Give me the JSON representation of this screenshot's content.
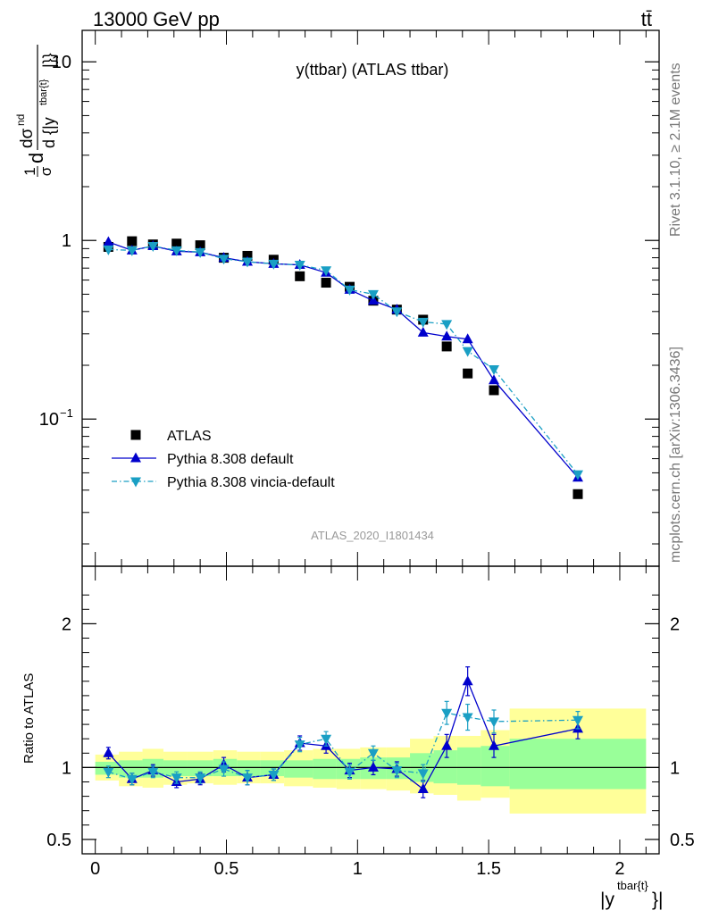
{
  "header": {
    "left": "13000 GeV pp",
    "right": "tt̄"
  },
  "side_text": {
    "rivet": "Rivet 3.1.10, ≥ 2.1M events",
    "mcplots": "mcplots.cern.ch [arXiv:1306.3436]"
  },
  "colors": {
    "atlas": "#000000",
    "pythia_default": "#0000cc",
    "pythia_vincia": "#1a9fc4",
    "band_inner": "#99ff99",
    "band_outer": "#ffff99"
  },
  "chart_data": [
    {
      "type": "scatter",
      "panel": "main",
      "title": "y(ttbar) (ATLAS ttbar)",
      "watermark": "ATLAS_2020_I1801434",
      "ylabel_parts": {
        "frac_num": "1",
        "frac_den": "σ",
        "d_prefix": "d",
        "num": "dσ",
        "num_sup": "nd",
        "den": "d {|y",
        "den_sub": "tbar{t}",
        "den_end": "|}}"
      },
      "yscale": "log",
      "ylim": [
        0.015,
        15
      ],
      "xlim": [
        -0.05,
        2.15
      ],
      "y_ticks": [
        {
          "value": 0.1,
          "base": "10",
          "exp": "−1"
        },
        {
          "value": 1,
          "base": "1",
          "exp": ""
        },
        {
          "value": 10,
          "base": "10",
          "exp": ""
        }
      ],
      "legend_position": "bottom-left",
      "series": [
        {
          "name": "ATLAS",
          "marker": "square",
          "x": [
            0.05,
            0.14,
            0.22,
            0.31,
            0.4,
            0.49,
            0.58,
            0.68,
            0.78,
            0.88,
            0.97,
            1.06,
            1.15,
            1.25,
            1.34,
            1.42,
            1.52,
            1.84
          ],
          "y": [
            0.92,
            0.99,
            0.95,
            0.96,
            0.94,
            0.8,
            0.82,
            0.78,
            0.63,
            0.58,
            0.55,
            0.46,
            0.41,
            0.36,
            0.255,
            0.18,
            0.145,
            0.038
          ]
        },
        {
          "name": "Pythia 8.308 default",
          "marker": "triangle-up",
          "x": [
            0.05,
            0.14,
            0.22,
            0.31,
            0.4,
            0.49,
            0.58,
            0.68,
            0.78,
            0.88,
            0.97,
            1.06,
            1.15,
            1.25,
            1.34,
            1.42,
            1.52,
            1.84
          ],
          "y": [
            0.98,
            0.88,
            0.93,
            0.87,
            0.86,
            0.8,
            0.76,
            0.74,
            0.73,
            0.66,
            0.53,
            0.46,
            0.41,
            0.305,
            0.29,
            0.28,
            0.165,
            0.047
          ]
        },
        {
          "name": "Pythia 8.308 vincia-default",
          "marker": "triangle-down",
          "x": [
            0.05,
            0.14,
            0.22,
            0.31,
            0.4,
            0.49,
            0.58,
            0.68,
            0.78,
            0.88,
            0.97,
            1.06,
            1.15,
            1.25,
            1.34,
            1.42,
            1.52,
            1.84
          ],
          "y": [
            0.89,
            0.88,
            0.93,
            0.88,
            0.86,
            0.79,
            0.76,
            0.74,
            0.73,
            0.68,
            0.53,
            0.5,
            0.4,
            0.35,
            0.34,
            0.24,
            0.19,
            0.049
          ]
        }
      ]
    },
    {
      "type": "line",
      "panel": "ratio",
      "ylabel": "Ratio to ATLAS",
      "xlabel_parts": {
        "pre": "|y",
        "sup": "tbar{t}",
        "post": "}|"
      },
      "ylim": [
        0.4,
        2.4
      ],
      "xlim": [
        -0.05,
        2.15
      ],
      "x_ticks": [
        {
          "value": 0,
          "label": "0"
        },
        {
          "value": 0.5,
          "label": "0.5"
        },
        {
          "value": 1,
          "label": "1"
        },
        {
          "value": 1.5,
          "label": "1.5"
        },
        {
          "value": 2,
          "label": "2"
        }
      ],
      "y_ticks": [
        {
          "value": 0.5,
          "label": "0.5"
        },
        {
          "value": 1,
          "label": "1"
        },
        {
          "value": 2,
          "label": "2"
        }
      ],
      "band_bins": [
        {
          "x0": 0.0,
          "x1": 0.09,
          "in_lo": 0.95,
          "in_hi": 1.04,
          "out_lo": 0.91,
          "out_hi": 1.09
        },
        {
          "x0": 0.09,
          "x1": 0.18,
          "in_lo": 0.93,
          "in_hi": 1.05,
          "out_lo": 0.87,
          "out_hi": 1.11
        },
        {
          "x0": 0.18,
          "x1": 0.26,
          "in_lo": 0.93,
          "in_hi": 1.06,
          "out_lo": 0.86,
          "out_hi": 1.13
        },
        {
          "x0": 0.26,
          "x1": 0.35,
          "in_lo": 0.94,
          "in_hi": 1.05,
          "out_lo": 0.88,
          "out_hi": 1.11
        },
        {
          "x0": 0.35,
          "x1": 0.45,
          "in_lo": 0.94,
          "in_hi": 1.05,
          "out_lo": 0.89,
          "out_hi": 1.11
        },
        {
          "x0": 0.45,
          "x1": 0.54,
          "in_lo": 0.94,
          "in_hi": 1.06,
          "out_lo": 0.88,
          "out_hi": 1.12
        },
        {
          "x0": 0.54,
          "x1": 0.63,
          "in_lo": 0.94,
          "in_hi": 1.05,
          "out_lo": 0.89,
          "out_hi": 1.11
        },
        {
          "x0": 0.63,
          "x1": 0.72,
          "in_lo": 0.94,
          "in_hi": 1.05,
          "out_lo": 0.89,
          "out_hi": 1.11
        },
        {
          "x0": 0.72,
          "x1": 0.83,
          "in_lo": 0.93,
          "in_hi": 1.05,
          "out_lo": 0.87,
          "out_hi": 1.12
        },
        {
          "x0": 0.83,
          "x1": 0.92,
          "in_lo": 0.92,
          "in_hi": 1.06,
          "out_lo": 0.86,
          "out_hi": 1.13
        },
        {
          "x0": 0.92,
          "x1": 1.01,
          "in_lo": 0.92,
          "in_hi": 1.06,
          "out_lo": 0.85,
          "out_hi": 1.13
        },
        {
          "x0": 1.01,
          "x1": 1.11,
          "in_lo": 0.92,
          "in_hi": 1.07,
          "out_lo": 0.85,
          "out_hi": 1.14
        },
        {
          "x0": 1.11,
          "x1": 1.2,
          "in_lo": 0.92,
          "in_hi": 1.07,
          "out_lo": 0.84,
          "out_hi": 1.14
        },
        {
          "x0": 1.2,
          "x1": 1.29,
          "in_lo": 0.9,
          "in_hi": 1.1,
          "out_lo": 0.82,
          "out_hi": 1.2
        },
        {
          "x0": 1.29,
          "x1": 1.38,
          "in_lo": 0.89,
          "in_hi": 1.12,
          "out_lo": 0.81,
          "out_hi": 1.22
        },
        {
          "x0": 1.38,
          "x1": 1.47,
          "in_lo": 0.88,
          "in_hi": 1.14,
          "out_lo": 0.77,
          "out_hi": 1.22
        },
        {
          "x0": 1.47,
          "x1": 1.58,
          "in_lo": 0.87,
          "in_hi": 1.15,
          "out_lo": 0.79,
          "out_hi": 1.26
        },
        {
          "x0": 1.58,
          "x1": 2.1,
          "in_lo": 0.85,
          "in_hi": 1.2,
          "out_lo": 0.68,
          "out_hi": 1.41
        }
      ],
      "series": [
        {
          "name": "Pythia 8.308 default",
          "marker": "triangle-up",
          "x": [
            0.05,
            0.14,
            0.22,
            0.31,
            0.4,
            0.49,
            0.58,
            0.68,
            0.78,
            0.88,
            0.97,
            1.06,
            1.15,
            1.25,
            1.34,
            1.42,
            1.52,
            1.84
          ],
          "y": [
            1.1,
            0.92,
            0.98,
            0.9,
            0.92,
            1.02,
            0.93,
            0.95,
            1.17,
            1.15,
            0.98,
            1.0,
            0.99,
            0.85,
            1.15,
            1.6,
            1.15,
            1.27
          ],
          "err": [
            0.04,
            0.04,
            0.04,
            0.04,
            0.04,
            0.05,
            0.05,
            0.04,
            0.05,
            0.05,
            0.05,
            0.05,
            0.05,
            0.06,
            0.08,
            0.1,
            0.08,
            0.07
          ]
        },
        {
          "name": "Pythia 8.308 vincia-default",
          "marker": "triangle-down",
          "x": [
            0.05,
            0.14,
            0.22,
            0.31,
            0.4,
            0.49,
            0.58,
            0.68,
            0.78,
            0.88,
            0.97,
            1.06,
            1.15,
            1.25,
            1.34,
            1.42,
            1.52,
            1.84
          ],
          "y": [
            0.97,
            0.92,
            0.97,
            0.93,
            0.93,
            0.99,
            0.93,
            0.95,
            1.16,
            1.2,
            0.97,
            1.1,
            0.98,
            0.96,
            1.38,
            1.35,
            1.32,
            1.33
          ],
          "err": [
            0.04,
            0.04,
            0.04,
            0.04,
            0.04,
            0.05,
            0.05,
            0.04,
            0.05,
            0.05,
            0.05,
            0.05,
            0.05,
            0.06,
            0.08,
            0.09,
            0.08,
            0.06
          ]
        }
      ]
    }
  ]
}
